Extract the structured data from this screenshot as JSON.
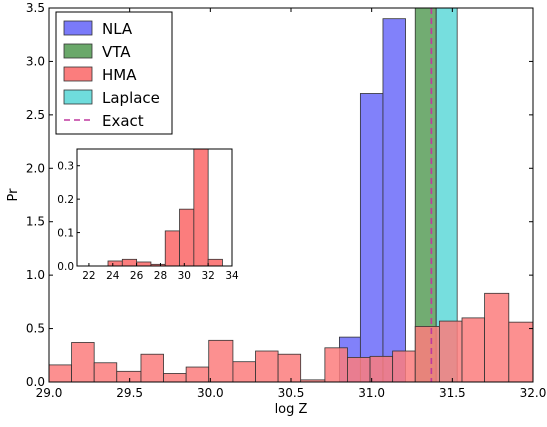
{
  "chart_data": [
    {
      "type": "bar",
      "role": "main-histogram",
      "xlabel": "log Z",
      "ylabel": "Pr",
      "xlim": [
        29.0,
        32.0
      ],
      "ylim": [
        0,
        3.5
      ],
      "x_ticks": [
        "29.0",
        "29.5",
        "30.0",
        "30.5",
        "31.0",
        "31.5",
        "32.0"
      ],
      "y_ticks": [
        "0.0",
        "0.5",
        "1.0",
        "1.5",
        "2.0",
        "2.5",
        "3.0",
        "3.5"
      ],
      "grid": false,
      "legend_position": "top-left",
      "series": [
        {
          "name": "NLA",
          "color": "#7a7afa",
          "bins": [
            {
              "x0": 30.8,
              "x1": 30.93,
              "y": 0.42
            },
            {
              "x0": 30.93,
              "x1": 31.07,
              "y": 2.7
            },
            {
              "x0": 31.07,
              "x1": 31.21,
              "y": 3.4
            }
          ]
        },
        {
          "name": "VTA",
          "color": "#6aa86a",
          "bins": [
            {
              "x0": 31.27,
              "x1": 31.4,
              "y": 3.5
            }
          ]
        },
        {
          "name": "HMA",
          "color": "#fb7d7d",
          "bins": [
            {
              "x0": 29.0,
              "x1": 29.14,
              "y": 0.16
            },
            {
              "x0": 29.14,
              "x1": 29.28,
              "y": 0.37
            },
            {
              "x0": 29.28,
              "x1": 29.42,
              "y": 0.18
            },
            {
              "x0": 29.42,
              "x1": 29.57,
              "y": 0.1
            },
            {
              "x0": 29.57,
              "x1": 29.71,
              "y": 0.26
            },
            {
              "x0": 29.71,
              "x1": 29.85,
              "y": 0.08
            },
            {
              "x0": 29.85,
              "x1": 29.99,
              "y": 0.14
            },
            {
              "x0": 29.99,
              "x1": 30.14,
              "y": 0.39
            },
            {
              "x0": 30.14,
              "x1": 30.28,
              "y": 0.19
            },
            {
              "x0": 30.28,
              "x1": 30.42,
              "y": 0.29
            },
            {
              "x0": 30.42,
              "x1": 30.56,
              "y": 0.26
            },
            {
              "x0": 30.56,
              "x1": 30.71,
              "y": 0.02
            },
            {
              "x0": 30.71,
              "x1": 30.85,
              "y": 0.32
            },
            {
              "x0": 30.85,
              "x1": 30.99,
              "y": 0.23
            },
            {
              "x0": 30.99,
              "x1": 31.13,
              "y": 0.24
            },
            {
              "x0": 31.13,
              "x1": 31.27,
              "y": 0.29
            },
            {
              "x0": 31.27,
              "x1": 31.42,
              "y": 0.52
            },
            {
              "x0": 31.42,
              "x1": 31.56,
              "y": 0.57
            },
            {
              "x0": 31.56,
              "x1": 31.7,
              "y": 0.6
            },
            {
              "x0": 31.7,
              "x1": 31.85,
              "y": 0.83
            },
            {
              "x0": 31.85,
              "x1": 32.0,
              "y": 0.56
            }
          ]
        },
        {
          "name": "Laplace",
          "color": "#6fdcdc",
          "bins": [
            {
              "x0": 31.4,
              "x1": 31.53,
              "y": 3.5
            }
          ]
        }
      ],
      "reference_lines": [
        {
          "name": "Exact",
          "x": 31.37,
          "color": "#c0399f",
          "style": "dashed"
        }
      ],
      "legend": [
        "NLA",
        "VTA",
        "HMA",
        "Laplace",
        "Exact"
      ]
    },
    {
      "type": "bar",
      "role": "inset-histogram",
      "xlim": [
        21,
        34
      ],
      "ylim": [
        0,
        0.35
      ],
      "x_ticks": [
        "22",
        "24",
        "26",
        "28",
        "30",
        "32",
        "34"
      ],
      "y_ticks": [
        "0.0",
        "0.1",
        "0.2",
        "0.3"
      ],
      "series": [
        {
          "name": "HMA",
          "color": "#fb7d7d",
          "bins": [
            {
              "x0": 23.6,
              "x1": 24.8,
              "y": 0.015
            },
            {
              "x0": 24.8,
              "x1": 26.0,
              "y": 0.02
            },
            {
              "x0": 26.0,
              "x1": 27.2,
              "y": 0.012
            },
            {
              "x0": 27.2,
              "x1": 28.4,
              "y": 0.005
            },
            {
              "x0": 28.4,
              "x1": 29.6,
              "y": 0.105
            },
            {
              "x0": 29.6,
              "x1": 30.8,
              "y": 0.17
            },
            {
              "x0": 30.8,
              "x1": 32.0,
              "y": 0.35
            },
            {
              "x0": 32.0,
              "x1": 33.2,
              "y": 0.02
            }
          ]
        }
      ]
    }
  ]
}
